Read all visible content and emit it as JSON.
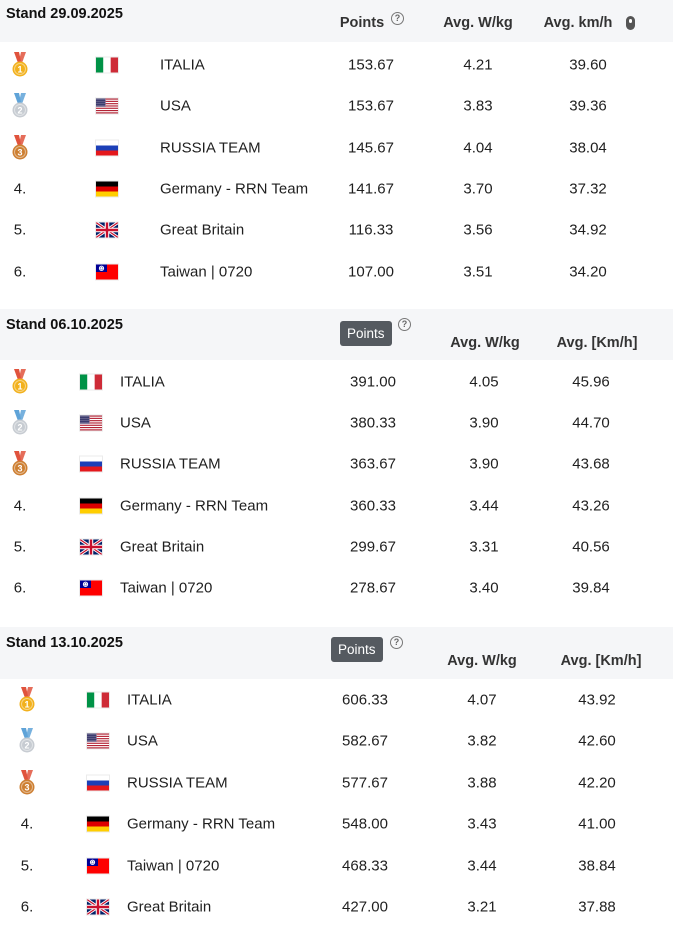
{
  "header_labels": {
    "points": "Points",
    "wkg": "Avg. W/kg",
    "kmh_first": "Avg. km/h",
    "kmh_other": "Avg. [Km/h]",
    "help_glyph": "?"
  },
  "tables": [
    {
      "title": "Stand 29.09.2025",
      "points_active": false,
      "rows": [
        {
          "rank": "",
          "medal": "gold",
          "flag": "it",
          "team": "ITALIA",
          "points": "153.67",
          "wkg": "4.21",
          "kmh": "39.60"
        },
        {
          "rank": "",
          "medal": "silver",
          "flag": "us",
          "team": "USA",
          "points": "153.67",
          "wkg": "3.83",
          "kmh": "39.36"
        },
        {
          "rank": "",
          "medal": "bronze",
          "flag": "ru",
          "team": "RUSSIA TEAM",
          "points": "145.67",
          "wkg": "4.04",
          "kmh": "38.04"
        },
        {
          "rank": "4.",
          "medal": "",
          "flag": "de",
          "team": "Germany - RRN Team",
          "points": "141.67",
          "wkg": "3.70",
          "kmh": "37.32"
        },
        {
          "rank": "5.",
          "medal": "",
          "flag": "gb",
          "team": "Great Britain",
          "points": "116.33",
          "wkg": "3.56",
          "kmh": "34.92"
        },
        {
          "rank": "6.",
          "medal": "",
          "flag": "tw",
          "team": "Taiwan | 0720",
          "points": "107.00",
          "wkg": "3.51",
          "kmh": "34.20"
        }
      ]
    },
    {
      "title": "Stand 06.10.2025",
      "points_active": true,
      "rows": [
        {
          "rank": "",
          "medal": "gold",
          "flag": "it",
          "team": "ITALIA",
          "points": "391.00",
          "wkg": "4.05",
          "kmh": "45.96"
        },
        {
          "rank": "",
          "medal": "silver",
          "flag": "us",
          "team": "USA",
          "points": "380.33",
          "wkg": "3.90",
          "kmh": "44.70"
        },
        {
          "rank": "",
          "medal": "bronze",
          "flag": "ru",
          "team": "RUSSIA TEAM",
          "points": "363.67",
          "wkg": "3.90",
          "kmh": "43.68"
        },
        {
          "rank": "4.",
          "medal": "",
          "flag": "de",
          "team": "Germany - RRN Team",
          "points": "360.33",
          "wkg": "3.44",
          "kmh": "43.26"
        },
        {
          "rank": "5.",
          "medal": "",
          "flag": "gb",
          "team": "Great Britain",
          "points": "299.67",
          "wkg": "3.31",
          "kmh": "40.56"
        },
        {
          "rank": "6.",
          "medal": "",
          "flag": "tw",
          "team": "Taiwan | 0720",
          "points": "278.67",
          "wkg": "3.40",
          "kmh": "39.84"
        }
      ]
    },
    {
      "title": "Stand 13.10.2025",
      "points_active": true,
      "rows": [
        {
          "rank": "",
          "medal": "gold",
          "flag": "it",
          "team": "ITALIA",
          "points": "606.33",
          "wkg": "4.07",
          "kmh": "43.92"
        },
        {
          "rank": "",
          "medal": "silver",
          "flag": "us",
          "team": "USA",
          "points": "582.67",
          "wkg": "3.82",
          "kmh": "42.60"
        },
        {
          "rank": "",
          "medal": "bronze",
          "flag": "ru",
          "team": "RUSSIA TEAM",
          "points": "577.67",
          "wkg": "3.88",
          "kmh": "42.20"
        },
        {
          "rank": "4.",
          "medal": "",
          "flag": "de",
          "team": "Germany - RRN Team",
          "points": "548.00",
          "wkg": "3.43",
          "kmh": "41.00"
        },
        {
          "rank": "5.",
          "medal": "",
          "flag": "tw",
          "team": "Taiwan | 0720",
          "points": "468.33",
          "wkg": "3.44",
          "kmh": "38.84"
        },
        {
          "rank": "6.",
          "medal": "",
          "flag": "gb",
          "team": "Great Britain",
          "points": "427.00",
          "wkg": "3.21",
          "kmh": "37.88"
        }
      ]
    }
  ],
  "medal_colors": {
    "gold": "#f2b11d",
    "silver": "#c7ccd2",
    "bronze": "#cd7f32"
  },
  "ribbon_colors": {
    "gold": "#e0533d",
    "silver": "#5fa3d8",
    "bronze": "#e0533d"
  }
}
